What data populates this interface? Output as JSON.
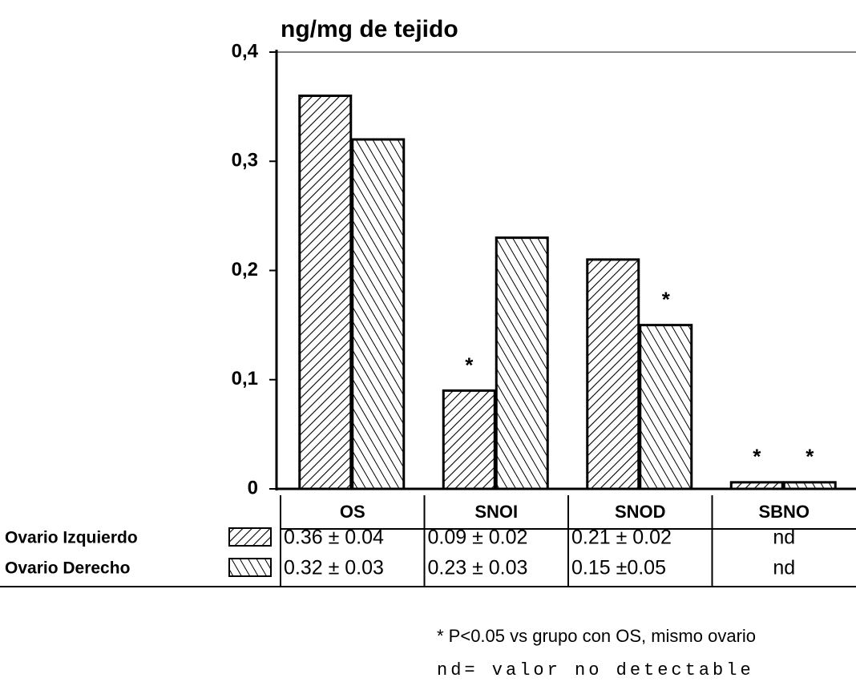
{
  "chart_data": {
    "type": "bar",
    "title": "ng/mg de tejido",
    "categories": [
      "OS",
      "SNOI",
      "SNOD",
      "SBNO"
    ],
    "series": [
      {
        "name": "Ovario Izquierdo",
        "pattern": "forward",
        "color": "#000000",
        "values": [
          0.36,
          0.09,
          0.21,
          0.006
        ],
        "table_values": [
          "0.36 ± 0.04",
          "0.09 ± 0.02",
          "0.21 ± 0.02",
          "nd"
        ],
        "significant": [
          false,
          true,
          false,
          true
        ]
      },
      {
        "name": "Ovario Derecho",
        "pattern": "backward",
        "color": "#000000",
        "values": [
          0.32,
          0.23,
          0.15,
          0.006
        ],
        "table_values": [
          "0.32 ± 0.03",
          "0.23 ± 0.03",
          "0.15 ±0.05",
          "nd"
        ],
        "significant": [
          false,
          false,
          true,
          true
        ]
      }
    ],
    "marker": "*",
    "ylim": [
      0,
      0.4
    ],
    "yticks": [
      0,
      {
        "value": 0.1,
        "label": "0,1"
      },
      {
        "value": 0.2,
        "label": "0,2"
      },
      {
        "value": 0.3,
        "label": "0,3"
      },
      {
        "value": 0.4,
        "label": "0,4"
      }
    ],
    "footnotes": [
      "* P<0.05 vs grupo con OS, mismo ovario",
      "nd= valor no detectable"
    ]
  }
}
